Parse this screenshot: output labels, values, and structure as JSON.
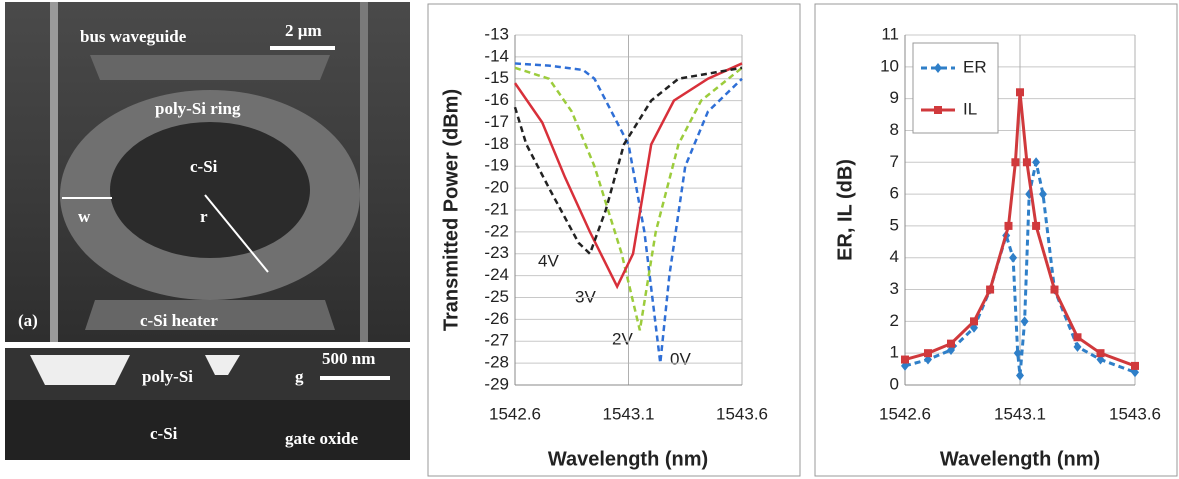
{
  "figure_a": {
    "labels": [
      "bus waveguide",
      "2 µm",
      "poly-Si ring",
      "c-Si",
      "w",
      "r",
      "(a)",
      "c-Si heater",
      "500 nm",
      "poly-Si",
      "g",
      "c-Si",
      "gate oxide"
    ]
  },
  "chart_data": [
    {
      "type": "line",
      "y_label": "Transmitted Power (dBm)",
      "x_label": "Wavelength (nm)",
      "xlim": [
        1542.6,
        1543.6
      ],
      "xticks": [
        1542.6,
        1543.1,
        1543.6
      ],
      "ylim": [
        -29,
        -13
      ],
      "yticks": [
        -13,
        -14,
        -15,
        -16,
        -17,
        -18,
        -19,
        -20,
        -21,
        -22,
        -23,
        -24,
        -25,
        -26,
        -27,
        -28,
        -29
      ],
      "grid": true,
      "series": [
        {
          "name": "0V",
          "color": "#2f6fd6",
          "dash": true,
          "x": [
            1542.6,
            1542.75,
            1542.9,
            1542.95,
            1543.0,
            1543.1,
            1543.17,
            1543.24,
            1543.28,
            1543.35,
            1543.45,
            1543.6
          ],
          "values": [
            -14.3,
            -14.4,
            -14.6,
            -15,
            -16,
            -18,
            -22,
            -28,
            -24,
            -19,
            -16.5,
            -15
          ]
        },
        {
          "name": "2V",
          "color": "#9ccc3c",
          "dash": true,
          "x": [
            1542.6,
            1542.75,
            1542.85,
            1542.95,
            1543.07,
            1543.15,
            1543.22,
            1543.32,
            1543.42,
            1543.6
          ],
          "values": [
            -14.5,
            -15,
            -16.5,
            -19,
            -23,
            -26.5,
            -22,
            -18,
            -16,
            -14.5
          ]
        },
        {
          "name": "3V",
          "color": "#d8303a",
          "dash": false,
          "x": [
            1542.6,
            1542.72,
            1542.82,
            1542.93,
            1543.05,
            1543.12,
            1543.2,
            1543.3,
            1543.45,
            1543.6
          ],
          "values": [
            -15.2,
            -17,
            -19.5,
            -22,
            -24.5,
            -23,
            -18,
            -16,
            -15,
            -14.3
          ]
        },
        {
          "name": "4V",
          "color": "#222222",
          "dash": true,
          "x": [
            1542.6,
            1542.65,
            1542.75,
            1542.88,
            1542.93,
            1543.0,
            1543.08,
            1543.2,
            1543.32,
            1543.6
          ],
          "values": [
            -16.3,
            -18,
            -20,
            -22.5,
            -23,
            -21,
            -18,
            -16,
            -15,
            -14.5
          ]
        }
      ]
    },
    {
      "type": "line",
      "y_label": "ER, IL (dB)",
      "x_label": "Wavelength (nm)",
      "xlim": [
        1542.6,
        1543.6
      ],
      "xticks": [
        1542.6,
        1543.1,
        1543.6
      ],
      "ylim": [
        0,
        11
      ],
      "yticks": [
        0,
        1,
        2,
        3,
        4,
        5,
        6,
        7,
        8,
        9,
        10,
        11
      ],
      "grid": true,
      "legend": "upper left",
      "series": [
        {
          "name": "ER",
          "color": "#2f7fc8",
          "dash": true,
          "marker": "diamond",
          "x": [
            1542.6,
            1542.7,
            1542.8,
            1542.9,
            1542.97,
            1543.04,
            1543.07,
            1543.09,
            1543.1,
            1543.12,
            1543.14,
            1543.17,
            1543.2,
            1543.25,
            1543.35,
            1543.45,
            1543.6
          ],
          "values": [
            0.6,
            0.8,
            1.1,
            1.8,
            3,
            4.7,
            4,
            1,
            0.3,
            2,
            6,
            7,
            6,
            3,
            1.2,
            0.8,
            0.4
          ]
        },
        {
          "name": "IL",
          "color": "#d0393c",
          "dash": false,
          "marker": "square",
          "x": [
            1542.6,
            1542.7,
            1542.8,
            1542.9,
            1542.97,
            1543.05,
            1543.08,
            1543.1,
            1543.13,
            1543.17,
            1543.25,
            1543.35,
            1543.45,
            1543.6
          ],
          "values": [
            0.8,
            1,
            1.3,
            2,
            3,
            5,
            7,
            9.2,
            7,
            5,
            3,
            1.5,
            1,
            0.6
          ]
        }
      ]
    }
  ]
}
